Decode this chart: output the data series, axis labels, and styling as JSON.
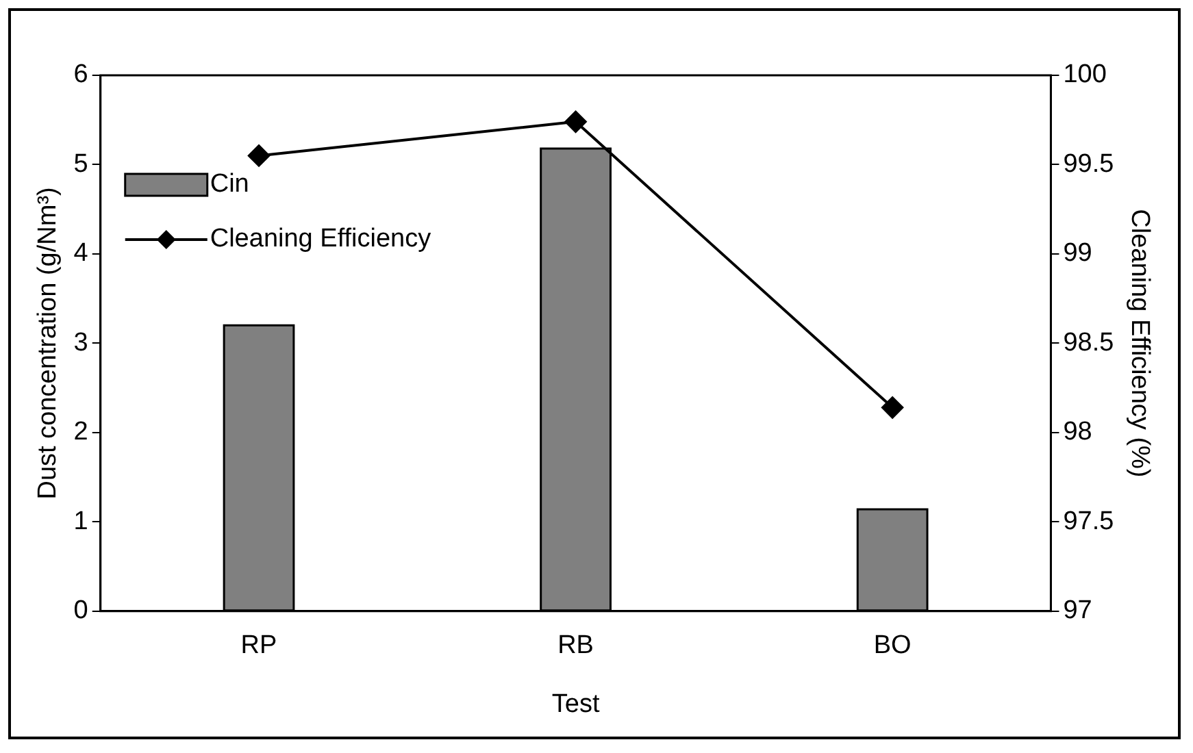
{
  "chart_data": {
    "type": "bar",
    "xlabel": "Test",
    "ylabel": "Dust concentration (g/Nm³)",
    "y2label": "Cleaning Efficiency (%)",
    "categories": [
      "RP",
      "RB",
      "BO"
    ],
    "series": [
      {
        "name": "Cin",
        "color": "#808080",
        "values": [
          3.2,
          5.18,
          1.14
        ]
      },
      {
        "name": "Cleaning Efficiency",
        "type": "line",
        "axis": "y2",
        "color": "#000000",
        "values": [
          99.55,
          99.74,
          98.14
        ]
      }
    ],
    "ylim": [
      0,
      6
    ],
    "yticks": [
      0,
      1,
      2,
      3,
      4,
      5,
      6
    ],
    "y2lim": [
      97,
      100
    ],
    "y2ticks": [
      97,
      97.5,
      98,
      98.5,
      99,
      99.5,
      100
    ],
    "legend": "top left",
    "marker": "diamond",
    "line_style": "solid",
    "grid": false
  }
}
